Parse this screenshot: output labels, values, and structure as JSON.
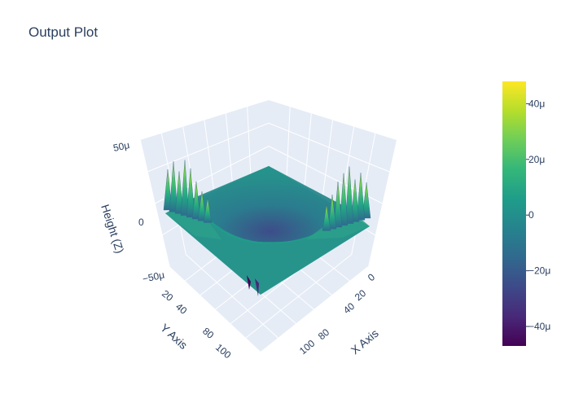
{
  "chart_data": {
    "type": "surface",
    "title": "Output Plot",
    "xlabel": "X Axis",
    "ylabel": "Y Axis",
    "zlabel": "Height (Z)",
    "x_ticks": [
      "0",
      "20",
      "40",
      "80",
      "100"
    ],
    "y_ticks": [
      "0",
      "20",
      "40",
      "80",
      "100"
    ],
    "z_ticks": [
      "50μ",
      "0",
      "−50μ"
    ],
    "xlim": [
      0,
      110
    ],
    "ylim": [
      0,
      110
    ],
    "zlim": [
      -5e-05,
      5e-05
    ],
    "colorscale": "viridis",
    "colorbar": {
      "ticks": [
        "40μ",
        "20μ",
        "0",
        "−20μ",
        "−40μ"
      ],
      "range": [
        -4.7e-05,
        4.8e-05
      ]
    },
    "colors": {
      "background": "#e5ecf6",
      "grid": "#ffffff",
      "text": "#2a3f5f",
      "viridis": [
        "#440154",
        "#482878",
        "#3e4989",
        "#31688e",
        "#26828e",
        "#1f9e89",
        "#35b779",
        "#6ece58",
        "#b5de2b",
        "#fde725"
      ]
    }
  }
}
